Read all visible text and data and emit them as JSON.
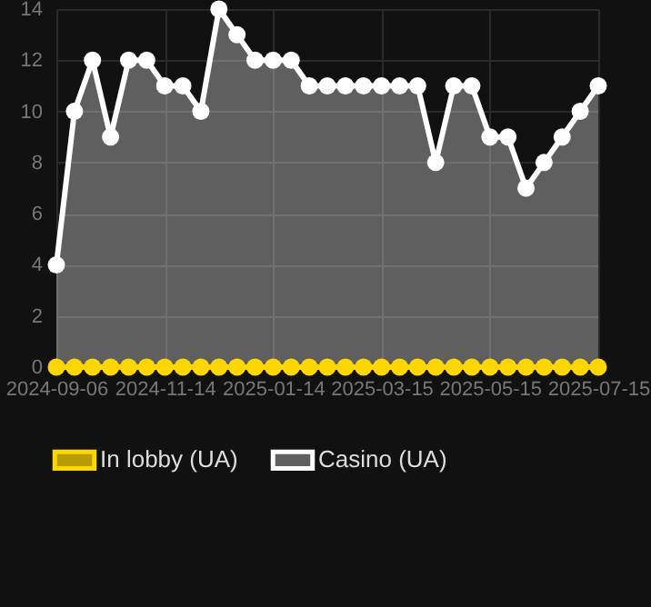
{
  "chart_data": {
    "type": "area",
    "categories": [
      "2024-09-06",
      null,
      null,
      null,
      null,
      null,
      "2024-11-14",
      null,
      null,
      null,
      null,
      null,
      "2025-01-14",
      null,
      null,
      null,
      null,
      null,
      "2025-03-15",
      null,
      null,
      null,
      null,
      null,
      "2025-05-15",
      null,
      null,
      null,
      null,
      null,
      "2025-07-15"
    ],
    "series": [
      {
        "name": "In lobby (UA)",
        "type": "line",
        "color": "#ffd700",
        "values": [
          0,
          0,
          0,
          0,
          0,
          0,
          0,
          0,
          0,
          0,
          0,
          0,
          0,
          0,
          0,
          0,
          0,
          0,
          0,
          0,
          0,
          0,
          0,
          0,
          0,
          0,
          0,
          0,
          0,
          0,
          0
        ]
      },
      {
        "name": "Casino (UA)",
        "color": "#ffffff",
        "values": [
          4,
          10,
          12,
          9,
          12,
          12,
          11,
          11,
          10,
          14,
          13,
          12,
          12,
          12,
          11,
          11,
          11,
          11,
          11,
          11,
          11,
          8,
          11,
          11,
          9,
          9,
          7,
          8,
          9,
          10,
          11
        ]
      }
    ],
    "ylim": [
      0,
      14
    ],
    "yticks": [
      0,
      2,
      4,
      6,
      8,
      10,
      12,
      14
    ],
    "grid": true,
    "legend": "bottom",
    "marker": "circle",
    "line_style": "solid"
  }
}
